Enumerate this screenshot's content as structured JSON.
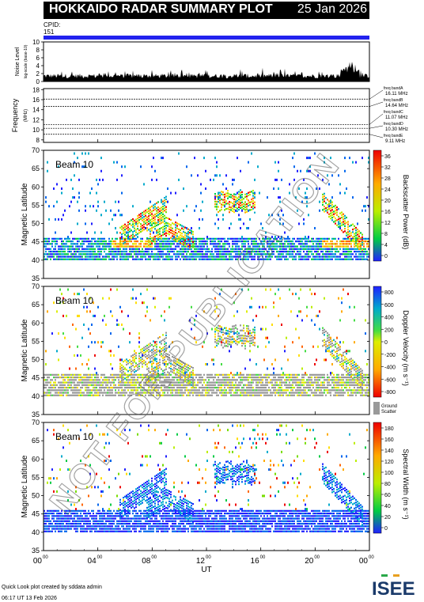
{
  "header": {
    "title": "HOKKAIDO RADAR SUMMARY PLOT",
    "date": "25 Jan 2026",
    "cpid_label": "CPID:",
    "cpid_value": "151"
  },
  "colors": {
    "accent": "#2222ee",
    "ground_scatter": "#999999"
  },
  "noise_panel": {
    "ylabel": "Noise Level",
    "ylabel_sub": "log-scale (base-10)",
    "yticks": [
      "0",
      "2",
      "4",
      "6",
      "8",
      "10"
    ]
  },
  "frequency_panel": {
    "ylabel": "Frequency",
    "ylabel_sub": "(MHz)",
    "yticks": [
      "8",
      "10",
      "12",
      "14",
      "16",
      "18"
    ],
    "bands": [
      {
        "label": "freq bandA",
        "value": "16.11 MHz",
        "mhz": 16.11
      },
      {
        "label": "freq bandB",
        "value": "14.64 MHz",
        "mhz": 14.64
      },
      {
        "label": "freq bandC",
        "value": "11.07 MHz",
        "mhz": 11.07
      },
      {
        "label": "freq bandD",
        "value": "10.30 MHz",
        "mhz": 10.3
      },
      {
        "label": "freq bandE",
        "value": "9.11 MHz",
        "mhz": 9.11
      }
    ]
  },
  "chart_data": [
    {
      "type": "heatmap",
      "beam_label": "Beam 10",
      "ylabel": "Magnetic Latitude",
      "ylim": [
        35,
        70
      ],
      "yticks": [
        "35",
        "40",
        "45",
        "50",
        "55",
        "60",
        "65",
        "70"
      ],
      "colorbar_label": "Backscatter Power (dB)",
      "colorbar_ticks": [
        "0",
        "4",
        "8",
        "12",
        "16",
        "20",
        "24",
        "28",
        "32",
        "36"
      ]
    },
    {
      "type": "heatmap",
      "beam_label": "Beam 10",
      "ylabel": "Magnetic Latitude",
      "ylim": [
        35,
        70
      ],
      "yticks": [
        "35",
        "40",
        "45",
        "50",
        "55",
        "60",
        "65",
        "70"
      ],
      "colorbar_label": "Doppler Velocity (m s⁻¹)",
      "colorbar_ticks": [
        "-800",
        "-600",
        "-400",
        "-200",
        "0",
        "200",
        "400",
        "600",
        "800"
      ],
      "ground_scatter_label": "Ground",
      "ground_scatter_label2": "Scatter"
    },
    {
      "type": "heatmap",
      "beam_label": "Beam 10",
      "ylabel": "Magnetic Latitude",
      "ylim": [
        35,
        70
      ],
      "yticks": [
        "35",
        "40",
        "45",
        "50",
        "55",
        "60",
        "65",
        "70"
      ],
      "colorbar_label": "Spectral Width (m s⁻¹)",
      "colorbar_ticks": [
        "0",
        "20",
        "40",
        "60",
        "80",
        "100",
        "120",
        "140",
        "160",
        "180"
      ]
    }
  ],
  "xaxis": {
    "label": "UT",
    "ticks": [
      "00",
      "04",
      "08",
      "12",
      "16",
      "20",
      "00"
    ],
    "tick_sup": "00"
  },
  "footer": {
    "credit": "Quick Look plot created by sddata admin",
    "timestamp": "06:17 UT 13 Feb 2026",
    "logo": "ISEE"
  },
  "watermark": "NOT FOR PUBLICATION"
}
